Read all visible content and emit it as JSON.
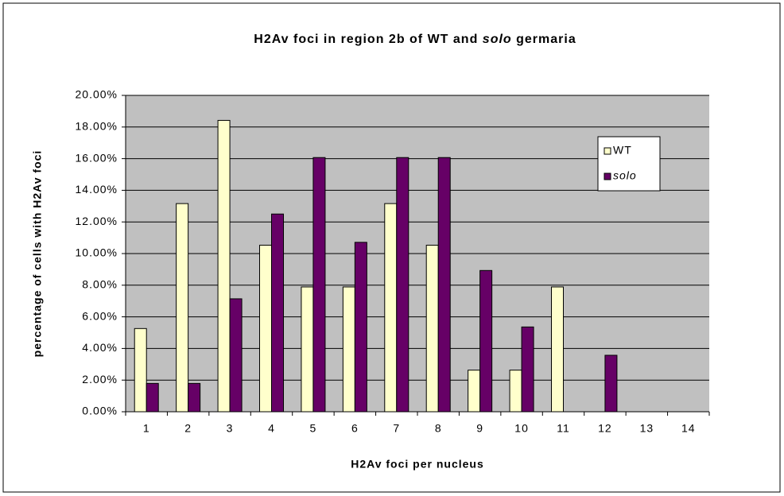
{
  "chart_data": {
    "type": "bar",
    "title": "H2Av foci in region 2b of WT and solo germaria",
    "x_label": "H2Av foci per nucleus",
    "y_label": "percentage of cells with H2Av foci",
    "categories": [
      "1",
      "2",
      "3",
      "4",
      "5",
      "6",
      "7",
      "8",
      "9",
      "10",
      "11",
      "12",
      "13",
      "14"
    ],
    "series": [
      {
        "name": "WT",
        "color": "#ffffcc",
        "values": [
          5.26,
          13.16,
          18.42,
          10.53,
          7.89,
          7.89,
          13.16,
          10.53,
          2.63,
          2.63,
          7.89,
          0,
          0,
          0
        ]
      },
      {
        "name": "solo",
        "color": "#660066",
        "italic": true,
        "values": [
          1.79,
          1.79,
          7.14,
          12.5,
          16.07,
          10.71,
          16.07,
          16.07,
          8.93,
          5.36,
          0,
          3.57,
          0,
          0
        ]
      }
    ],
    "ylim": [
      0,
      20
    ],
    "yticks": [
      {
        "value": 0,
        "label": "0.00%"
      },
      {
        "value": 2,
        "label": "2.00%"
      },
      {
        "value": 4,
        "label": "4.00%"
      },
      {
        "value": 6,
        "label": "6.00%"
      },
      {
        "value": 8,
        "label": "8.00%"
      },
      {
        "value": 10,
        "label": "10.00%"
      },
      {
        "value": 12,
        "label": "12.00%"
      },
      {
        "value": 14,
        "label": "14.00%"
      },
      {
        "value": 16,
        "label": "16.00%"
      },
      {
        "value": 18,
        "label": "18.00%"
      },
      {
        "value": 20,
        "label": "20.00%"
      }
    ],
    "grid": true,
    "legend": "upper right",
    "plot_background": "#c0c0c0"
  }
}
